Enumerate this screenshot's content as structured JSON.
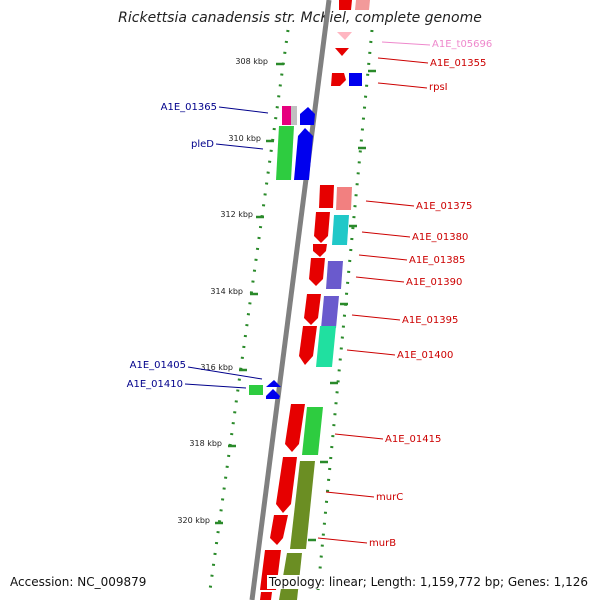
{
  "title": "Rickettsia canadensis str. McKiel, complete genome",
  "accession": "Accession: NC_009879",
  "topology": "Topology: linear; Length: 1,159,772 bp; Genes: 1,126",
  "colors": {
    "backbone": "#808080",
    "tick": "#2a8a2a",
    "forward_label": "#cc0000",
    "reverse_label": "#00008b",
    "trna_label": "#ee88cc"
  },
  "ruler": [
    {
      "label": "308 kbp",
      "kbp": 308
    },
    {
      "label": "310 kbp",
      "kbp": 310
    },
    {
      "label": "312 kbp",
      "kbp": 312
    },
    {
      "label": "314 kbp",
      "kbp": 314
    },
    {
      "label": "316 kbp",
      "kbp": 316
    },
    {
      "label": "318 kbp",
      "kbp": 318
    },
    {
      "label": "320 kbp",
      "kbp": 320
    }
  ],
  "gene_labels": [
    {
      "name": "A1E_t05696",
      "strand": "trna"
    },
    {
      "name": "A1E_01355",
      "strand": "forward"
    },
    {
      "name": "rpsI",
      "strand": "forward"
    },
    {
      "name": "A1E_01365",
      "strand": "reverse"
    },
    {
      "name": "pleD",
      "strand": "reverse"
    },
    {
      "name": "A1E_01375",
      "strand": "forward"
    },
    {
      "name": "A1E_01380",
      "strand": "forward"
    },
    {
      "name": "A1E_01385",
      "strand": "forward"
    },
    {
      "name": "A1E_01390",
      "strand": "forward"
    },
    {
      "name": "A1E_01395",
      "strand": "forward"
    },
    {
      "name": "A1E_01400",
      "strand": "forward"
    },
    {
      "name": "A1E_01405",
      "strand": "reverse"
    },
    {
      "name": "A1E_01410",
      "strand": "reverse"
    },
    {
      "name": "A1E_01415",
      "strand": "forward"
    },
    {
      "name": "murC",
      "strand": "forward"
    },
    {
      "name": "murB",
      "strand": "forward"
    }
  ]
}
